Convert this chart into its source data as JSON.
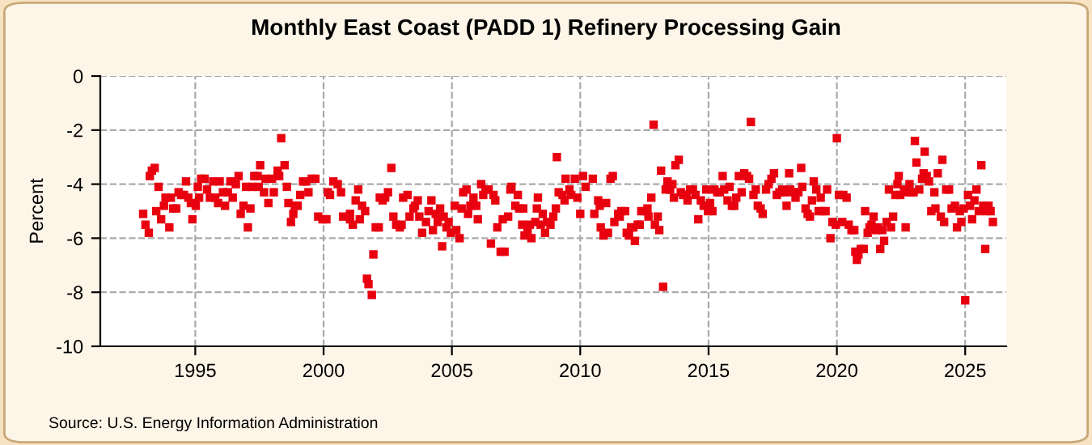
{
  "chart_data": {
    "type": "scatter",
    "title": "Monthly East Coast (PADD 1) Refinery Processing Gain",
    "ylabel": "Percent",
    "annotations": [
      "Source: U.S. Energy Information Administration"
    ],
    "xlim": [
      1991.3,
      2026.6
    ],
    "xticks": [
      1995,
      2000,
      2005,
      2010,
      2015,
      2020,
      2025
    ],
    "ylim": [
      -10,
      0
    ],
    "yticks": [
      -10,
      -8,
      -6,
      -4,
      -2,
      0
    ],
    "grid": true,
    "marker": "square",
    "series": [
      {
        "color": "#e8000f",
        "x": [
          1992.97,
          1993.06,
          1993.19,
          1993.23,
          1993.31,
          1993.42,
          1993.48,
          1993.57,
          1993.67,
          1993.78,
          1993.84,
          1993.99,
          1994.05,
          1994.14,
          1994.26,
          1994.35,
          1994.45,
          1994.56,
          1994.64,
          1994.73,
          1994.83,
          1994.89,
          1995.02,
          1995.1,
          1995.15,
          1995.23,
          1995.36,
          1995.46,
          1995.57,
          1995.7,
          1995.78,
          1995.89,
          1995.95,
          1996.08,
          1996.16,
          1996.27,
          1996.37,
          1996.46,
          1996.58,
          1996.69,
          1996.77,
          1996.88,
          1996.98,
          1997.05,
          1997.15,
          1997.22,
          1997.3,
          1997.43,
          1997.47,
          1997.53,
          1997.68,
          1997.74,
          1997.85,
          1997.99,
          1998.06,
          1998.21,
          1998.27,
          1998.35,
          1998.48,
          1998.57,
          1998.63,
          1998.73,
          1998.82,
          1998.88,
          1998.99,
          1999.09,
          1999.2,
          1999.32,
          1999.41,
          1999.54,
          1999.68,
          1999.79,
          1999.96,
          2000.11,
          2000.17,
          2000.25,
          2000.38,
          2000.55,
          2000.68,
          2000.76,
          2001.03,
          2001.03,
          2001.14,
          2001.25,
          2001.35,
          2001.41,
          2001.5,
          2001.62,
          2001.69,
          2001.75,
          2001.88,
          2001.94,
          2002.03,
          2002.15,
          2002.19,
          2002.3,
          2002.4,
          2002.51,
          2002.64,
          2002.72,
          2002.83,
          2002.97,
          2003.04,
          2003.1,
          2003.27,
          2003.35,
          2003.5,
          2003.56,
          2003.67,
          2003.73,
          2003.84,
          2003.99,
          2004.09,
          2004.2,
          2004.26,
          2004.37,
          2004.45,
          2004.54,
          2004.62,
          2004.68,
          2004.79,
          2004.87,
          2004.96,
          2005.11,
          2005.17,
          2005.3,
          2005.38,
          2005.44,
          2005.57,
          2005.63,
          2005.72,
          2005.84,
          2005.95,
          2006.01,
          2006.14,
          2006.22,
          2006.31,
          2006.43,
          2006.52,
          2006.62,
          2006.69,
          2006.77,
          2006.9,
          2006.98,
          2007.05,
          2007.19,
          2007.28,
          2007.32,
          2007.47,
          2007.57,
          2007.62,
          2007.74,
          2007.78,
          2007.83,
          2007.95,
          2008.04,
          2008.1,
          2008.25,
          2008.31,
          2008.35,
          2008.46,
          2008.54,
          2008.63,
          2008.71,
          2008.84,
          2008.95,
          2009.05,
          2009.09,
          2009.16,
          2009.31,
          2009.39,
          2009.43,
          2009.58,
          2009.65,
          2009.79,
          2009.89,
          2010.0,
          2010.11,
          2010.21,
          2010.49,
          2010.55,
          2010.7,
          2010.76,
          2010.8,
          2010.91,
          2011.01,
          2011.08,
          2011.18,
          2011.27,
          2011.33,
          2011.48,
          2011.54,
          2011.6,
          2011.75,
          2011.81,
          2011.9,
          2011.98,
          2012.07,
          2012.13,
          2012.24,
          2012.32,
          2012.38,
          2012.53,
          2012.62,
          2012.66,
          2012.77,
          2012.86,
          2012.91,
          2013.02,
          2013.08,
          2013.15,
          2013.23,
          2013.33,
          2013.4,
          2013.5,
          2013.59,
          2013.65,
          2013.71,
          2013.84,
          2013.92,
          2014.01,
          2014.14,
          2014.18,
          2014.28,
          2014.39,
          2014.49,
          2014.6,
          2014.7,
          2014.81,
          2014.91,
          2014.98,
          2015.06,
          2015.15,
          2015.23,
          2015.34,
          2015.44,
          2015.55,
          2015.61,
          2015.74,
          2015.82,
          2015.91,
          2016.0,
          2016.08,
          2016.18,
          2016.29,
          2016.39,
          2016.5,
          2016.58,
          2016.65,
          2016.75,
          2016.84,
          2016.92,
          2017.03,
          2017.11,
          2017.24,
          2017.34,
          2017.45,
          2017.55,
          2017.66,
          2017.76,
          2017.87,
          2017.97,
          2018.04,
          2018.14,
          2018.18,
          2018.29,
          2018.39,
          2018.5,
          2018.61,
          2018.65,
          2018.78,
          2018.86,
          2018.95,
          2019.03,
          2019.1,
          2019.2,
          2019.29,
          2019.37,
          2019.46,
          2019.56,
          2019.62,
          2019.75,
          2019.83,
          2019.96,
          2020.0,
          2020.08,
          2020.21,
          2020.25,
          2020.38,
          2020.46,
          2020.57,
          2020.68,
          2020.72,
          2020.78,
          2020.84,
          2020.93,
          2021.05,
          2021.1,
          2021.2,
          2021.27,
          2021.35,
          2021.43,
          2021.52,
          2021.6,
          2021.69,
          2021.77,
          2021.84,
          2021.94,
          2022.03,
          2022.11,
          2022.19,
          2022.28,
          2022.36,
          2022.41,
          2022.47,
          2022.62,
          2022.68,
          2022.74,
          2022.83,
          2022.91,
          2022.99,
          2023.04,
          2023.1,
          2023.21,
          2023.32,
          2023.38,
          2023.42,
          2023.5,
          2023.59,
          2023.68,
          2023.8,
          2023.84,
          2023.93,
          2024.05,
          2024.11,
          2024.18,
          2024.26,
          2024.37,
          2024.47,
          2024.6,
          2024.68,
          2024.79,
          2024.85,
          2024.94,
          2025.0,
          2025.11,
          2025.19,
          2025.27,
          2025.36,
          2025.44,
          2025.53,
          2025.63,
          2025.7,
          2025.78,
          2025.84,
          2025.91,
          2025.99,
          2026.08
        ],
        "values": [
          -5.1,
          -5.5,
          -5.8,
          -3.7,
          -3.5,
          -3.4,
          -5.0,
          -4.1,
          -5.3,
          -4.8,
          -4.5,
          -5.6,
          -4.5,
          -4.9,
          -4.9,
          -4.3,
          -4.4,
          -4.4,
          -3.9,
          -4.5,
          -4.7,
          -5.3,
          -4.8,
          -4.1,
          -4.5,
          -3.8,
          -3.8,
          -4.2,
          -4.5,
          -3.9,
          -4.5,
          -4.7,
          -3.9,
          -4.3,
          -4.8,
          -4.3,
          -3.9,
          -4.5,
          -4.0,
          -3.7,
          -5.1,
          -4.8,
          -4.1,
          -5.6,
          -4.9,
          -4.1,
          -3.7,
          -3.7,
          -4.1,
          -3.3,
          -4.3,
          -3.8,
          -4.7,
          -3.8,
          -4.3,
          -3.5,
          -3.7,
          -2.3,
          -3.3,
          -4.1,
          -4.7,
          -5.4,
          -5.1,
          -4.8,
          -4.8,
          -4.4,
          -3.9,
          -3.9,
          -4.3,
          -3.8,
          -3.8,
          -5.2,
          -5.3,
          -5.3,
          -4.3,
          -4.4,
          -3.9,
          -4.0,
          -4.3,
          -5.2,
          -5.1,
          -5.3,
          -5.5,
          -4.6,
          -4.2,
          -5.3,
          -4.8,
          -5.0,
          -7.5,
          -7.7,
          -8.1,
          -6.6,
          -5.6,
          -5.6,
          -4.5,
          -4.6,
          -4.5,
          -4.3,
          -3.4,
          -5.2,
          -5.5,
          -5.6,
          -5.5,
          -4.5,
          -4.4,
          -5.2,
          -4.9,
          -4.8,
          -4.6,
          -5.2,
          -5.8,
          -5.4,
          -5.0,
          -4.6,
          -5.7,
          -5.1,
          -5.4,
          -4.9,
          -6.3,
          -5.2,
          -5.6,
          -5.4,
          -5.8,
          -4.8,
          -5.7,
          -6.0,
          -4.9,
          -4.3,
          -4.2,
          -5.1,
          -4.8,
          -4.5,
          -4.8,
          -5.3,
          -4.0,
          -4.4,
          -4.2,
          -4.2,
          -6.2,
          -4.4,
          -4.6,
          -5.6,
          -6.5,
          -5.3,
          -6.5,
          -5.2,
          -4.2,
          -4.1,
          -4.8,
          -4.4,
          -4.9,
          -5.5,
          -4.9,
          -5.9,
          -5.8,
          -5.5,
          -6.0,
          -5.4,
          -4.9,
          -4.5,
          -5.5,
          -5.1,
          -5.8,
          -5.4,
          -5.5,
          -5.2,
          -4.9,
          -3.0,
          -4.3,
          -4.4,
          -4.6,
          -3.8,
          -4.2,
          -4.4,
          -3.8,
          -4.5,
          -5.1,
          -3.7,
          -4.1,
          -3.8,
          -5.1,
          -4.6,
          -4.8,
          -5.6,
          -5.9,
          -4.7,
          -5.8,
          -3.8,
          -3.7,
          -5.4,
          -5.1,
          -5.2,
          -5.0,
          -5.0,
          -5.8,
          -5.9,
          -5.6,
          -5.6,
          -6.1,
          -5.5,
          -5.5,
          -5.0,
          -5.0,
          -4.9,
          -5.2,
          -4.5,
          -1.8,
          -5.5,
          -5.2,
          -5.7,
          -3.5,
          -7.8,
          -4.2,
          -3.9,
          -4.2,
          -4.0,
          -4.5,
          -3.3,
          -3.1,
          -4.3,
          -4.4,
          -4.4,
          -4.6,
          -4.2,
          -4.2,
          -4.4,
          -5.3,
          -4.6,
          -4.8,
          -4.2,
          -5.0,
          -4.7,
          -5.0,
          -4.2,
          -4.3,
          -4.3,
          -3.7,
          -4.2,
          -4.6,
          -4.1,
          -4.8,
          -4.8,
          -4.5,
          -3.7,
          -4.3,
          -3.6,
          -3.7,
          -3.8,
          -1.7,
          -4.4,
          -4.2,
          -4.8,
          -4.9,
          -5.1,
          -4.2,
          -4.0,
          -3.8,
          -3.6,
          -4.4,
          -4.3,
          -4.2,
          -4.3,
          -4.8,
          -3.6,
          -4.2,
          -4.3,
          -4.5,
          -4.3,
          -3.4,
          -4.1,
          -4.9,
          -5.1,
          -5.2,
          -4.6,
          -3.9,
          -4.2,
          -5.0,
          -4.5,
          -5.0,
          -5.0,
          -4.2,
          -6.0,
          -5.4,
          -5.5,
          -2.3,
          -4.4,
          -5.4,
          -4.4,
          -4.5,
          -5.5,
          -5.7,
          -5.7,
          -6.5,
          -6.8,
          -6.6,
          -6.4,
          -6.4,
          -5.0,
          -5.8,
          -5.6,
          -5.5,
          -5.2,
          -5.7,
          -5.6,
          -6.4,
          -5.7,
          -6.1,
          -5.4,
          -4.2,
          -5.6,
          -5.2,
          -4.4,
          -4.0,
          -3.7,
          -4.4,
          -4.2,
          -5.6,
          -4.3,
          -4.0,
          -4.3,
          -4.3,
          -2.4,
          -3.2,
          -4.2,
          -3.8,
          -3.6,
          -2.8,
          -3.7,
          -3.9,
          -5.0,
          -4.3,
          -4.9,
          -3.6,
          -5.2,
          -3.1,
          -5.4,
          -4.2,
          -4.2,
          -4.9,
          -4.8,
          -5.6,
          -5.0,
          -5.4,
          -4.9,
          -8.3,
          -4.4,
          -4.8,
          -5.3,
          -4.6,
          -4.2,
          -5.0,
          -3.3,
          -4.8,
          -6.4,
          -5.0,
          -4.8,
          -5.0,
          -5.4
        ]
      }
    ]
  }
}
